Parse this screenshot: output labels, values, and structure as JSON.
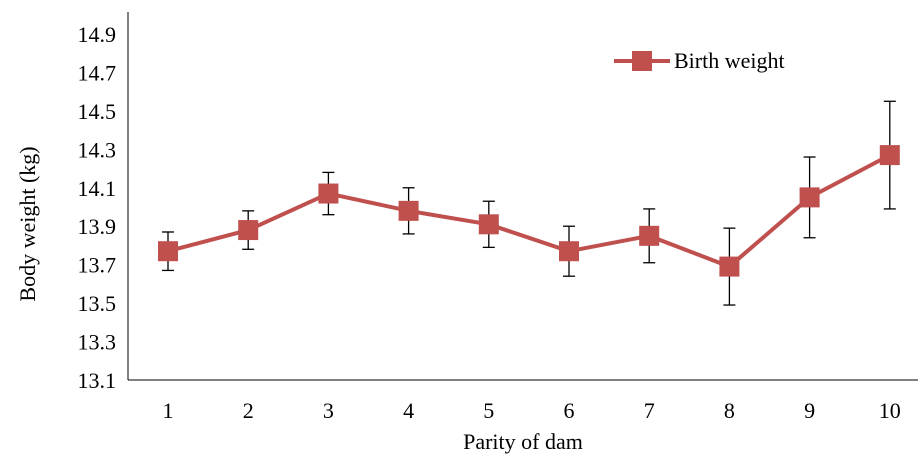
{
  "chart_data": {
    "type": "line",
    "xlabel": "Parity of dam",
    "ylabel": "Body  weight (kg)",
    "ylim": [
      13.1,
      15.0
    ],
    "yticks": [
      "13.1",
      "13.3",
      "13.5",
      "13.7",
      "13.9",
      "14.1",
      "14.3",
      "14.5",
      "14.7",
      "14.9"
    ],
    "categories": [
      "1",
      "2",
      "3",
      "4",
      "5",
      "6",
      "7",
      "8",
      "9",
      "10"
    ],
    "grid": false,
    "legend_position": "top-right",
    "series": [
      {
        "name": "Birth weight",
        "color": "#C0504D",
        "marker": "square",
        "values": [
          13.77,
          13.88,
          14.07,
          13.98,
          13.91,
          13.77,
          13.85,
          13.69,
          14.05,
          14.27
        ],
        "error_upper": [
          13.87,
          13.98,
          14.18,
          14.1,
          14.03,
          13.9,
          13.99,
          13.89,
          14.26,
          14.55
        ],
        "error_lower": [
          13.67,
          13.78,
          13.96,
          13.86,
          13.79,
          13.64,
          13.71,
          13.49,
          13.84,
          13.99
        ]
      }
    ]
  }
}
